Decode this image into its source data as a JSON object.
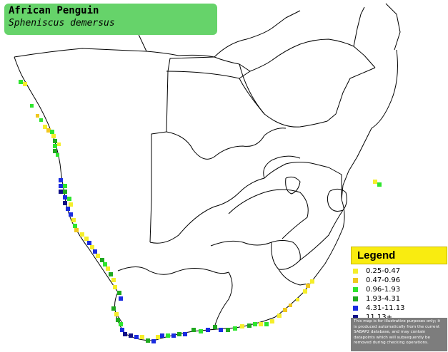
{
  "title": {
    "common_name": "African Penguin",
    "scientific_name": "Spheniscus demersus"
  },
  "legend": {
    "heading": "Legend",
    "items": [
      {
        "label": "0.25-0.47",
        "color": "#f5ee2a"
      },
      {
        "label": "0.47-0.96",
        "color": "#f0c81e"
      },
      {
        "label": "0.96-1.93",
        "color": "#2ee52e"
      },
      {
        "label": "1.93-4.31",
        "color": "#1fa81f"
      },
      {
        "label": "4.31-11.13",
        "color": "#1a2be0"
      },
      {
        "label": "11.13+",
        "color": "#101086"
      }
    ],
    "disclaimer": "This map is for illustrative purposes only; it is produced automatically from the current SABAP2 database, and may contain datapoints which will subsequently be removed during checking operations."
  }
}
